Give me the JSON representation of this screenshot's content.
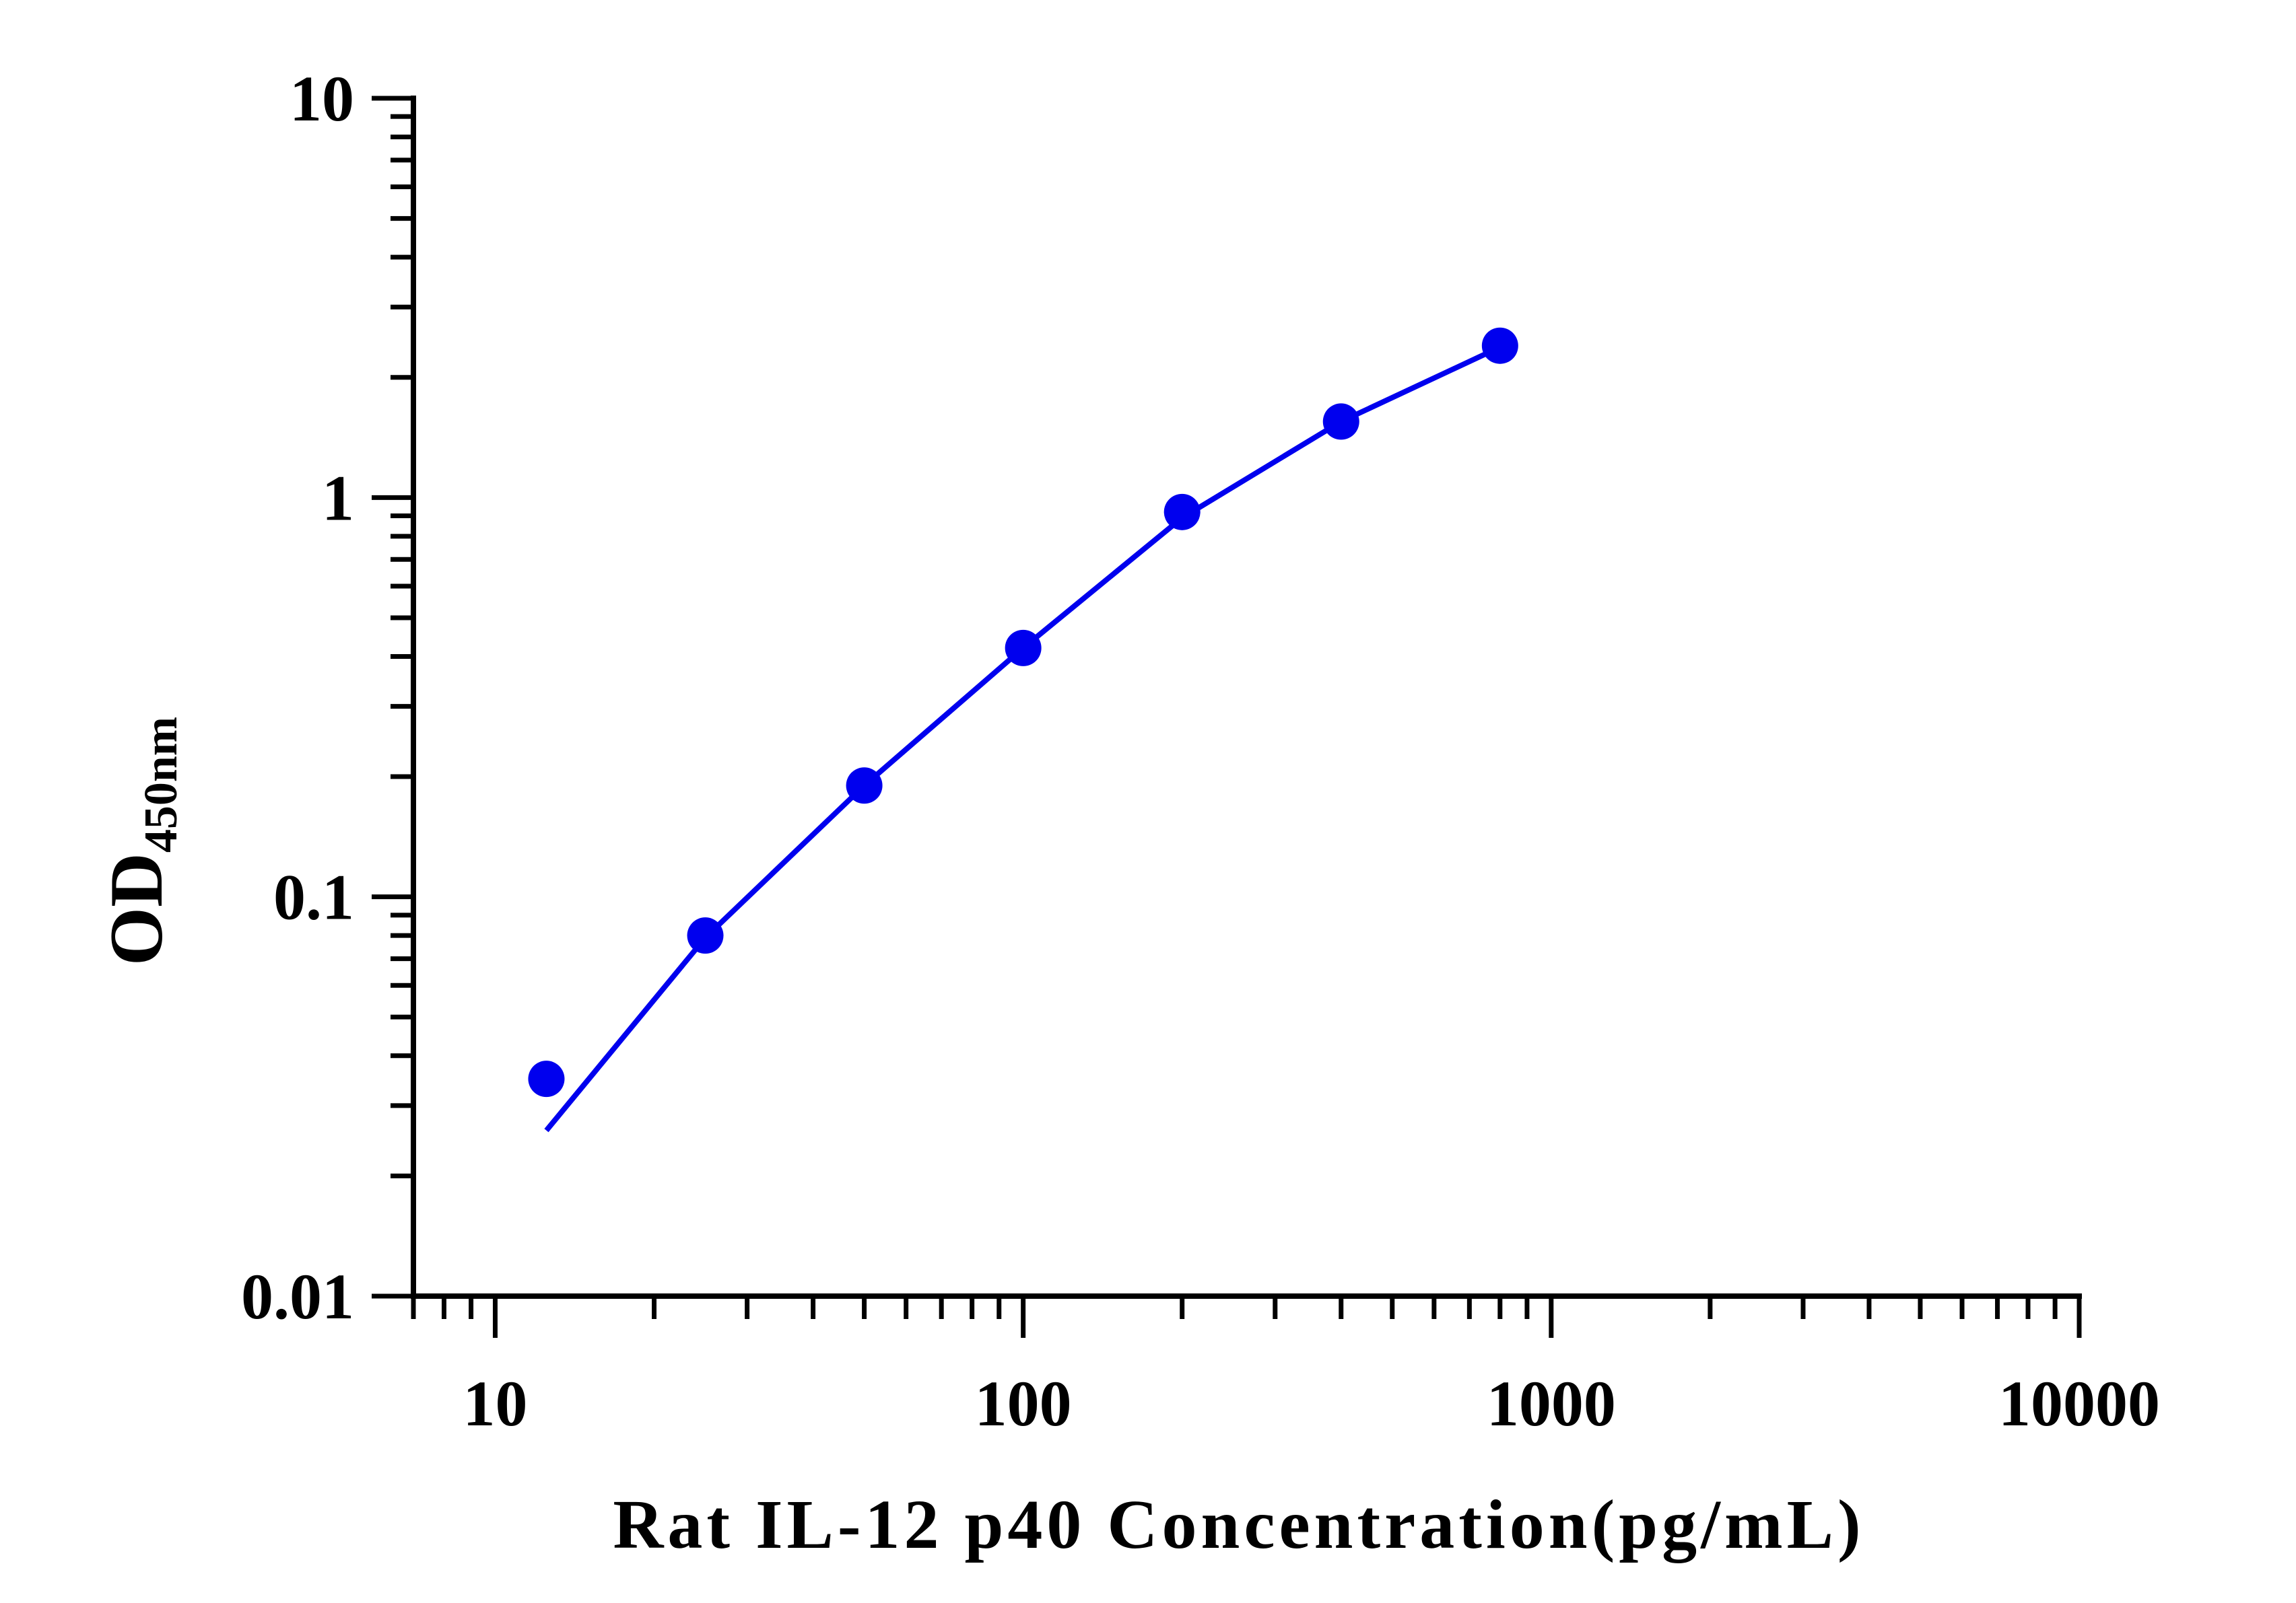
{
  "chart_data": {
    "type": "scatter",
    "xscale": "log",
    "yscale": "log",
    "xlim": [
      7,
      10000
    ],
    "ylim": [
      0.01,
      10
    ],
    "xticks": [
      {
        "value": 10,
        "label": "10"
      },
      {
        "value": 100,
        "label": "100"
      },
      {
        "value": 1000,
        "label": "1000"
      },
      {
        "value": 10000,
        "label": "10000"
      }
    ],
    "yticks": [
      {
        "value": 0.01,
        "label": "0.01"
      },
      {
        "value": 0.1,
        "label": "0.1"
      },
      {
        "value": 1,
        "label": "1"
      },
      {
        "value": 10,
        "label": "10"
      }
    ],
    "xlabel": "Rat IL-12 p40 Concentration(pg/mL)",
    "ylabel": "OD",
    "ylabel_subscript": "450nm",
    "color": "#0000ee",
    "points": [
      {
        "x": 12.5,
        "y": 0.035
      },
      {
        "x": 25,
        "y": 0.08
      },
      {
        "x": 50,
        "y": 0.19
      },
      {
        "x": 100,
        "y": 0.42
      },
      {
        "x": 200,
        "y": 0.92
      },
      {
        "x": 400,
        "y": 1.55
      },
      {
        "x": 800,
        "y": 2.4
      }
    ],
    "fit_curve": [
      {
        "x": 12.5,
        "y": 0.026
      },
      {
        "x": 25,
        "y": 0.079
      },
      {
        "x": 50,
        "y": 0.19
      },
      {
        "x": 100,
        "y": 0.42
      },
      {
        "x": 200,
        "y": 0.89
      },
      {
        "x": 400,
        "y": 1.55
      },
      {
        "x": 800,
        "y": 2.38
      }
    ],
    "grid": false,
    "legend": "none"
  }
}
